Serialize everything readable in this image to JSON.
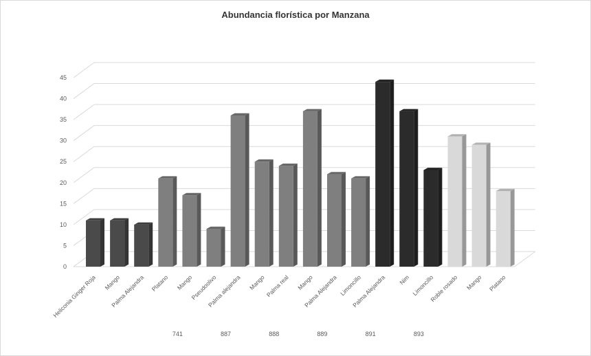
{
  "chart_data": {
    "type": "bar",
    "title": "Abundancia florística por Manzana",
    "xlabel": "",
    "ylabel": "",
    "ylim": [
      0,
      45
    ],
    "yticks": [
      0,
      5,
      10,
      15,
      20,
      25,
      30,
      35,
      40,
      45
    ],
    "grid": true,
    "legend": "none",
    "bars": [
      {
        "category": "Heliconia Ginger Roja",
        "value": 11,
        "group": ""
      },
      {
        "category": "Mango",
        "value": 11,
        "group": ""
      },
      {
        "category": "Palma Alejandra",
        "value": 10,
        "group": ""
      },
      {
        "category": "Platano",
        "value": 21,
        "group": "741"
      },
      {
        "category": "Mango",
        "value": 17,
        "group": "741"
      },
      {
        "category": "Pseudoolivo",
        "value": 9,
        "group": "887"
      },
      {
        "category": "Palma alejandra",
        "value": 36,
        "group": "887"
      },
      {
        "category": "Mango",
        "value": 25,
        "group": "888"
      },
      {
        "category": "Palma real",
        "value": 24,
        "group": "888"
      },
      {
        "category": "Mango",
        "value": 37,
        "group": "889"
      },
      {
        "category": "Palma Alejandra",
        "value": 22,
        "group": "889"
      },
      {
        "category": "Limoncillo",
        "value": 21,
        "group": "891"
      },
      {
        "category": "Palma Alejandra",
        "value": 44,
        "group": "891"
      },
      {
        "category": "Nim",
        "value": 37,
        "group": "893"
      },
      {
        "category": "Limoncillo",
        "value": 23,
        "group": "893"
      },
      {
        "category": "Roble rosado",
        "value": 31,
        "group": ""
      },
      {
        "category": "Mango",
        "value": 29,
        "group": ""
      },
      {
        "category": "Platano",
        "value": 18,
        "group": ""
      }
    ],
    "groups": [
      {
        "label": "741",
        "start": 3,
        "end": 4
      },
      {
        "label": "887",
        "start": 5,
        "end": 6
      },
      {
        "label": "888",
        "start": 7,
        "end": 8
      },
      {
        "label": "889",
        "start": 9,
        "end": 10
      },
      {
        "label": "891",
        "start": 11,
        "end": 12
      },
      {
        "label": "893",
        "start": 13,
        "end": 14
      }
    ],
    "colors": {
      "dark": "#4a4a4a",
      "medium": "#7f7f7f",
      "black": "#2b2b2b",
      "light": "#d9d9d9",
      "grid": "#d9d9d9"
    },
    "bar_color_keys": [
      "dark",
      "dark",
      "dark",
      "medium",
      "medium",
      "medium",
      "medium",
      "medium",
      "medium",
      "medium",
      "medium",
      "medium",
      "black",
      "black",
      "black",
      "light",
      "light",
      "light"
    ]
  }
}
